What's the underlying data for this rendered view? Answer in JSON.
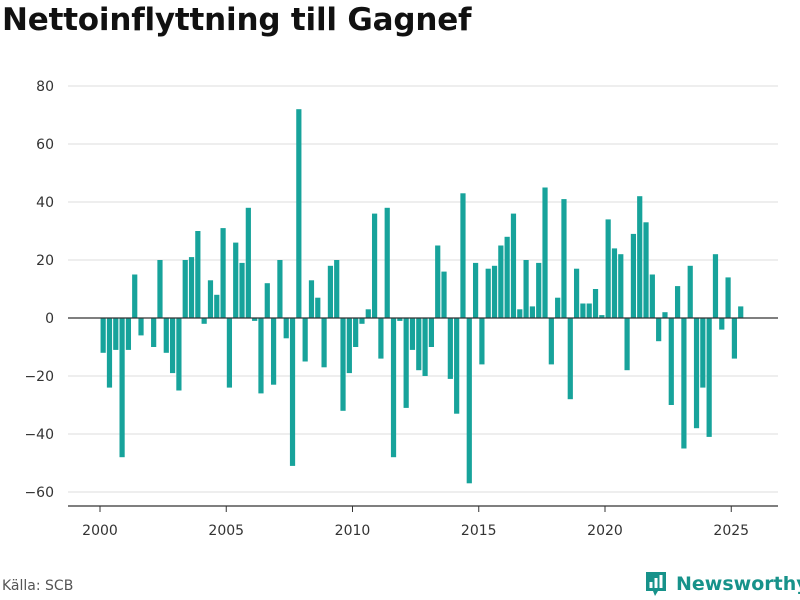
{
  "chart_data": {
    "type": "bar",
    "title": "Nettoinflyttning till Gagnef",
    "xlabel": "",
    "ylabel": "",
    "ylim": [
      -65,
      85
    ],
    "xlim": [
      1999.0,
      2026.8
    ],
    "yticks": [
      80,
      60,
      40,
      20,
      0,
      -20,
      -40,
      -60
    ],
    "xticks": [
      2000,
      2005,
      2010,
      2015,
      2020,
      2025
    ],
    "bar_color": "#17a39b",
    "grid": true,
    "x": [
      2000.125,
      2000.375,
      2000.625,
      2000.875,
      2001.125,
      2001.375,
      2001.625,
      2001.875,
      2002.125,
      2002.375,
      2002.625,
      2002.875,
      2003.125,
      2003.375,
      2003.625,
      2003.875,
      2004.125,
      2004.375,
      2004.625,
      2004.875,
      2005.125,
      2005.375,
      2005.625,
      2005.875,
      2006.125,
      2006.375,
      2006.625,
      2006.875,
      2007.125,
      2007.375,
      2007.625,
      2007.875,
      2008.125,
      2008.375,
      2008.625,
      2008.875,
      2009.125,
      2009.375,
      2009.625,
      2009.875,
      2010.125,
      2010.375,
      2010.625,
      2010.875,
      2011.125,
      2011.375,
      2011.625,
      2011.875,
      2012.125,
      2012.375,
      2012.625,
      2012.875,
      2013.125,
      2013.375,
      2013.625,
      2013.875,
      2014.125,
      2014.375,
      2014.625,
      2014.875,
      2015.125,
      2015.375,
      2015.625,
      2015.875,
      2016.125,
      2016.375,
      2016.625,
      2016.875,
      2017.125,
      2017.375,
      2017.625,
      2017.875,
      2018.125,
      2018.375,
      2018.625,
      2018.875,
      2019.125,
      2019.375,
      2019.625,
      2019.875,
      2020.125,
      2020.375,
      2020.625,
      2020.875,
      2021.125,
      2021.375,
      2021.625,
      2021.875,
      2022.125,
      2022.375,
      2022.625,
      2022.875,
      2023.125,
      2023.375,
      2023.625,
      2023.875,
      2024.125,
      2024.375,
      2024.625,
      2024.875,
      2025.125,
      2025.375
    ],
    "values": [
      -12,
      -24,
      -11,
      -48,
      -11,
      15,
      -6,
      0,
      -10,
      20,
      -12,
      -19,
      -25,
      20,
      21,
      30,
      -2,
      13,
      8,
      31,
      -24,
      26,
      19,
      38,
      -1,
      -26,
      12,
      -23,
      20,
      -7,
      -51,
      72,
      -15,
      13,
      7,
      -17,
      18,
      20,
      -32,
      -19,
      -10,
      -2,
      3,
      36,
      -14,
      38,
      -48,
      -1,
      -31,
      -11,
      -18,
      -20,
      -10,
      25,
      16,
      -21,
      -33,
      43,
      -57,
      19,
      -16,
      17,
      18,
      25,
      28,
      36,
      3,
      20,
      4,
      19,
      45,
      -16,
      7,
      41,
      -28,
      17,
      5,
      5,
      10,
      1,
      34,
      24,
      22,
      -18,
      29,
      42,
      33,
      15,
      -8,
      2,
      -30,
      11,
      -45,
      18,
      -38,
      -24,
      -41,
      22,
      -4,
      14,
      -14,
      4
    ]
  },
  "source_text": "Källa: SCB",
  "brand": {
    "name": "Newsworthy",
    "icon": "bar-chart-logo-icon",
    "color": "#17928a"
  }
}
